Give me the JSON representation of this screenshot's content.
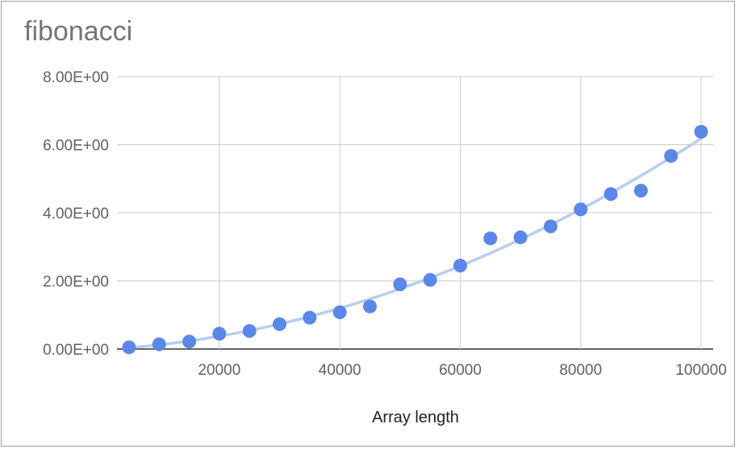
{
  "chart_data": {
    "type": "scatter",
    "title": "fibonacci",
    "xlabel": "Array length",
    "ylabel": "",
    "xlim": [
      3000,
      102000
    ],
    "ylim": [
      0,
      8
    ],
    "x_ticks": [
      20000,
      40000,
      60000,
      80000,
      100000
    ],
    "x_tick_labels": [
      "20000",
      "40000",
      "60000",
      "80000",
      "100000"
    ],
    "y_ticks": [
      0,
      2,
      4,
      6,
      8
    ],
    "y_tick_labels": [
      "0.00E+00",
      "2.00E+00",
      "4.00E+00",
      "6.00E+00",
      "8.00E+00"
    ],
    "grid": true,
    "legend": "none",
    "point_color": "#5b87e8",
    "trendline_color": "#b8cdf4",
    "trendline": "polynomial",
    "x": [
      5000,
      10000,
      15000,
      20000,
      25000,
      30000,
      35000,
      40000,
      45000,
      50000,
      55000,
      60000,
      65000,
      70000,
      75000,
      80000,
      85000,
      90000,
      95000,
      100000
    ],
    "y": [
      0.05,
      0.14,
      0.22,
      0.45,
      0.53,
      0.73,
      0.92,
      1.08,
      1.25,
      1.9,
      2.03,
      2.45,
      3.25,
      3.28,
      3.6,
      4.1,
      4.55,
      4.65,
      5.67,
      6.38
    ]
  }
}
